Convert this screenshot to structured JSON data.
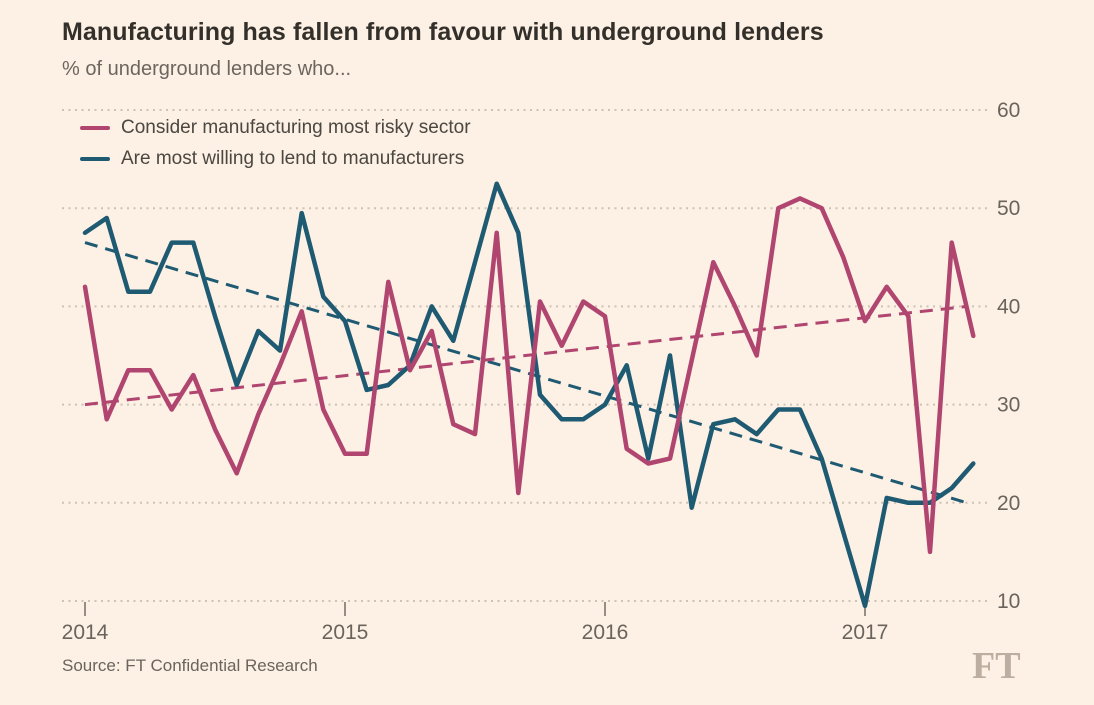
{
  "source": "Source: FT Confidential Research",
  "branding": {
    "logo": "FT"
  },
  "colors": {
    "background": "#FDF0E4",
    "risky": "#B0456F",
    "willing": "#1F5A73",
    "grid": "#CDC2B6",
    "tick": "#968D84",
    "axis_text": "#6B645D",
    "title_text": "#33302B",
    "subtitle_text": "#6D665F",
    "legend_text": "#4B4741",
    "logo_text": "#BCAEA1"
  },
  "chart_data": {
    "type": "line",
    "title": "Manufacturing has fallen from favour with underground lenders",
    "subtitle": "% of underground lenders who...",
    "x_start": "2014-01",
    "x_end": "2017-06",
    "frequency": "monthly",
    "x_tick_labels": [
      "2014",
      "2015",
      "2016",
      "2017"
    ],
    "x_tick_positions_months": [
      0,
      12,
      24,
      36
    ],
    "y_ticks": [
      10,
      20,
      30,
      40,
      50,
      60
    ],
    "ylim": [
      10,
      60
    ],
    "y_tick_side": "right",
    "grid": "horizontal-dotted",
    "legend_position": "top-left",
    "series": [
      {
        "name": "Consider manufacturing most risky sector",
        "color_key": "risky",
        "values": [
          42,
          28.5,
          33.5,
          33.5,
          29.5,
          33,
          27.5,
          23,
          29,
          34,
          39.5,
          29.5,
          25,
          25,
          42.5,
          33.5,
          37.5,
          28,
          27,
          47.5,
          21,
          40.5,
          36,
          40.5,
          39,
          25.5,
          24,
          24.5,
          34.5,
          44.5,
          40,
          35,
          50,
          51,
          50,
          45,
          38.5,
          42,
          39,
          15,
          46.5,
          37
        ],
        "trend": {
          "style": "dashed",
          "start_value": 30,
          "end_value": 40
        }
      },
      {
        "name": "Are most willing to lend to manufacturers",
        "color_key": "willing",
        "values": [
          47.5,
          49,
          41.5,
          41.5,
          46.5,
          46.5,
          39,
          32,
          37.5,
          35.5,
          49.5,
          41,
          38.5,
          31.5,
          32,
          34,
          40,
          36.5,
          44.5,
          52.5,
          47.5,
          31,
          28.5,
          28.5,
          30,
          34,
          24.5,
          35,
          19.5,
          28,
          28.5,
          27,
          29.5,
          29.5,
          24.5,
          17,
          9.5,
          20.5,
          20,
          20,
          21.5,
          24
        ],
        "trend": {
          "style": "dashed",
          "start_value": 46.5,
          "end_value": 20
        }
      }
    ]
  }
}
